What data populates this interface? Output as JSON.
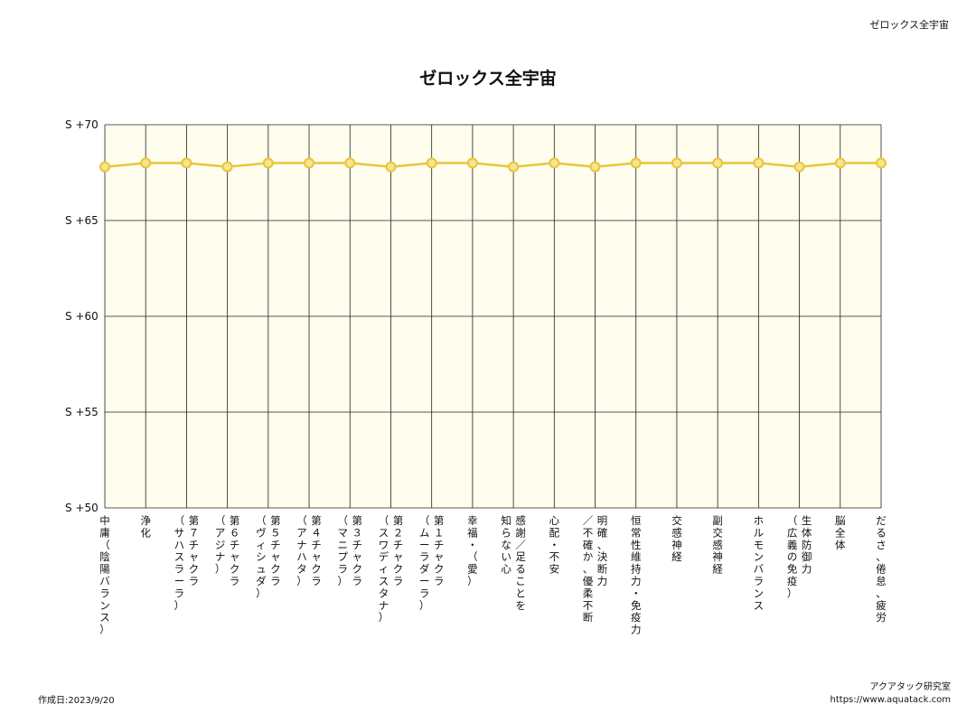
{
  "header": {
    "label": "ゼロックス全宇宙"
  },
  "footer": {
    "created": "作成日:2023/9/20",
    "organization": "アクアタック研究室",
    "url": "https://www.aquatack.com"
  },
  "chart_data": {
    "type": "line",
    "title": "ゼロックス全宇宙",
    "xlabel": "",
    "ylabel": "",
    "ylim": [
      50,
      70
    ],
    "yticks": [
      {
        "value": 70,
        "label": "S +70"
      },
      {
        "value": 65,
        "label": "S +65"
      },
      {
        "value": 60,
        "label": "S +60"
      },
      {
        "value": 55,
        "label": "S +55"
      },
      {
        "value": 50,
        "label": "S +50"
      }
    ],
    "grid": true,
    "categories": [
      "中庸（陰陽バランス）",
      "浄化",
      "第7チャクラ（サハスラーラ）",
      "第6チャクラ（アジナ）",
      "第5チャクラ（ヴィシュダ）",
      "第4チャクラ（アナハタ）",
      "第3チャクラ（マニプラ）",
      "第2チャクラ（スワディスタナ）",
      "第1チャクラ（ムーラダーラ）",
      "幸福・（愛）",
      "感謝／足ることを知らない心",
      "心配・不安",
      "明確、決断力／不確か、優柔不断",
      "恒常性維持力・免疫力",
      "交感神経",
      "副交感神経",
      "ホルモンバランス",
      "生体防御力（広義の免疫）",
      "脳全体",
      "だるさ、倦怠、疲労"
    ],
    "category_lines": [
      [
        "中庸（陰陽バランス）"
      ],
      [
        "浄化"
      ],
      [
        "第７チャクラ",
        "（サハスラーラ）"
      ],
      [
        "第６チャクラ",
        "（アジナ）"
      ],
      [
        "第５チャクラ",
        "（ヴィシュダ）"
      ],
      [
        "第４チャクラ",
        "（アナハタ）"
      ],
      [
        "第３チャクラ",
        "（マニプラ）"
      ],
      [
        "第２チャクラ",
        "（スワディスタナ）"
      ],
      [
        "第１チャクラ",
        "（ムーラダーラ）"
      ],
      [
        "幸福・（愛）"
      ],
      [
        "感謝／足ることを",
        "知らない心"
      ],
      [
        "心配・不安"
      ],
      [
        "明確、決断力",
        "／不確か、優柔不断"
      ],
      [
        "恒常性維持力・免疫力"
      ],
      [
        "交感神経"
      ],
      [
        "副交感神経"
      ],
      [
        "ホルモンバランス"
      ],
      [
        "生体防御力",
        "（広義の免疫）"
      ],
      [
        "脳全体"
      ],
      [
        "だるさ、倦怠、疲労"
      ]
    ],
    "series": [
      {
        "values": [
          67.8,
          68.0,
          68.0,
          67.8,
          68.0,
          68.0,
          68.0,
          67.8,
          68.0,
          68.0,
          67.8,
          68.0,
          67.8,
          68.0,
          68.0,
          68.0,
          68.0,
          67.8,
          68.0,
          68.0
        ],
        "color": "#e6c63c",
        "marker_fill": "#f7e48c"
      }
    ],
    "plot_background": "#fffdee",
    "grid_color": "#222222"
  }
}
